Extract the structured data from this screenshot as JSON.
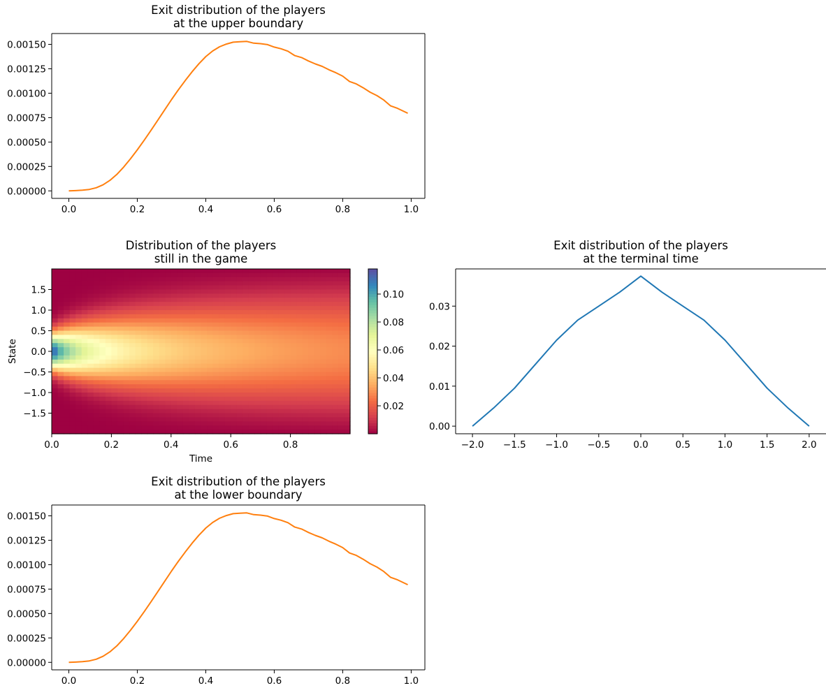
{
  "colors": {
    "orange": "#ff7f0e",
    "blue": "#1f77b4"
  },
  "chart_data": [
    {
      "id": "upper",
      "type": "line",
      "title": [
        "Exit distribution of the players",
        "at the upper boundary"
      ],
      "xlabel": "",
      "ylabel": "",
      "xlim": [
        -0.05,
        1.04
      ],
      "ylim": [
        -7.67e-05,
        0.001611
      ],
      "xticks": [
        0.0,
        0.2,
        0.4,
        0.6,
        0.8,
        1.0
      ],
      "xtick_labels": [
        "0.0",
        "0.2",
        "0.4",
        "0.6",
        "0.8",
        "1.0"
      ],
      "yticks": [
        0.0,
        0.00025,
        0.0005,
        0.00075,
        0.001,
        0.00125,
        0.0015
      ],
      "ytick_labels": [
        "0.00000",
        "0.00025",
        "0.00050",
        "0.00075",
        "0.00100",
        "0.00125",
        "0.00150"
      ],
      "series": [
        {
          "color": "#ff7f0e",
          "x": [
            0.0,
            0.02,
            0.04,
            0.06,
            0.08,
            0.1,
            0.12,
            0.14,
            0.16,
            0.18,
            0.2,
            0.22,
            0.24,
            0.26,
            0.28,
            0.3,
            0.32,
            0.34,
            0.36,
            0.38,
            0.4,
            0.42,
            0.44,
            0.46,
            0.48,
            0.5,
            0.52,
            0.54,
            0.56,
            0.58,
            0.6,
            0.62,
            0.64,
            0.66,
            0.68,
            0.7,
            0.72,
            0.74,
            0.76,
            0.78,
            0.8,
            0.82,
            0.84,
            0.86,
            0.88,
            0.9,
            0.92,
            0.94,
            0.96,
            0.99
          ],
          "y": [
            0.0,
            3e-06,
            7e-06,
            1.5e-05,
            3.2e-05,
            6.2e-05,
            0.000108,
            0.000168,
            0.000243,
            0.000328,
            0.00042,
            0.000518,
            0.00062,
            0.000725,
            0.00083,
            0.000935,
            0.001035,
            0.00113,
            0.00122,
            0.001302,
            0.001375,
            0.001432,
            0.001475,
            0.001503,
            0.001522,
            0.001527,
            0.00153,
            0.001512,
            0.001507,
            0.001498,
            0.001472,
            0.001455,
            0.00143,
            0.001385,
            0.001365,
            0.00133,
            0.0013,
            0.001275,
            0.00124,
            0.00121,
            0.001175,
            0.00112,
            0.001095,
            0.001055,
            0.00101,
            0.000975,
            0.00093,
            0.00087,
            0.000845,
            0.000795
          ]
        }
      ]
    },
    {
      "id": "heatmap",
      "type": "heatmap",
      "title": [
        "Distribution of the players",
        "still in the game"
      ],
      "xlabel": "Time",
      "ylabel": "State",
      "xlim": [
        0.0,
        1.0
      ],
      "ylim": [
        -2.0,
        2.0
      ],
      "xticks": [
        0.0,
        0.2,
        0.4,
        0.6,
        0.8
      ],
      "xtick_labels": [
        "0.0",
        "0.2",
        "0.4",
        "0.6",
        "0.8"
      ],
      "yticks": [
        -1.5,
        -1.0,
        -0.5,
        0.0,
        0.5,
        1.0,
        1.5
      ],
      "ytick_labels": [
        "−1.5",
        "−1.0",
        "−0.5",
        "0.0",
        "0.5",
        "1.0",
        "1.5"
      ],
      "grid": {
        "time_cells": 50,
        "state_cells": 40
      },
      "colorbar": {
        "min": 0.0,
        "max": 0.118,
        "ticks": [
          0.02,
          0.04,
          0.06,
          0.08,
          0.1
        ],
        "tick_labels": [
          "0.02",
          "0.04",
          "0.06",
          "0.08",
          "0.10"
        ],
        "colormap": "Spectral"
      }
    },
    {
      "id": "terminal",
      "type": "line",
      "title": [
        "Exit distribution of the players",
        "at the terminal time"
      ],
      "xlabel": "",
      "ylabel": "",
      "xlim": [
        -2.2,
        2.2
      ],
      "ylim": [
        -0.0019,
        0.0393
      ],
      "xticks": [
        -2.0,
        -1.5,
        -1.0,
        -0.5,
        0.0,
        0.5,
        1.0,
        1.5,
        2.0
      ],
      "xtick_labels": [
        "−2.0",
        "−1.5",
        "−1.0",
        "−0.5",
        "0.0",
        "0.5",
        "1.0",
        "1.5",
        "2.0"
      ],
      "yticks": [
        0.0,
        0.01,
        0.02,
        0.03
      ],
      "ytick_labels": [
        "0.00",
        "0.01",
        "0.02",
        "0.03"
      ],
      "series": [
        {
          "color": "#1f77b4",
          "x": [
            -2.0,
            -1.75,
            -1.5,
            -1.25,
            -1.0,
            -0.75,
            -0.5,
            -0.25,
            0.0,
            0.25,
            0.5,
            0.75,
            1.0,
            1.25,
            1.5,
            1.75,
            2.0
          ],
          "y": [
            0.0,
            0.0045,
            0.0095,
            0.0155,
            0.0215,
            0.0265,
            0.03,
            0.0335,
            0.0375,
            0.0335,
            0.03,
            0.0265,
            0.0215,
            0.0155,
            0.0095,
            0.0045,
            0.0
          ]
        }
      ]
    },
    {
      "id": "lower",
      "type": "line",
      "title": [
        "Exit distribution of the players",
        "at the lower boundary"
      ],
      "xlabel": "",
      "ylabel": "",
      "xlim": [
        -0.05,
        1.04
      ],
      "ylim": [
        -7.67e-05,
        0.001611
      ],
      "xticks": [
        0.0,
        0.2,
        0.4,
        0.6,
        0.8,
        1.0
      ],
      "xtick_labels": [
        "0.0",
        "0.2",
        "0.4",
        "0.6",
        "0.8",
        "1.0"
      ],
      "yticks": [
        0.0,
        0.00025,
        0.0005,
        0.00075,
        0.001,
        0.00125,
        0.0015
      ],
      "ytick_labels": [
        "0.00000",
        "0.00025",
        "0.00050",
        "0.00075",
        "0.00100",
        "0.00125",
        "0.00150"
      ],
      "series": [
        {
          "color": "#ff7f0e",
          "x": [
            0.0,
            0.02,
            0.04,
            0.06,
            0.08,
            0.1,
            0.12,
            0.14,
            0.16,
            0.18,
            0.2,
            0.22,
            0.24,
            0.26,
            0.28,
            0.3,
            0.32,
            0.34,
            0.36,
            0.38,
            0.4,
            0.42,
            0.44,
            0.46,
            0.48,
            0.5,
            0.52,
            0.54,
            0.56,
            0.58,
            0.6,
            0.62,
            0.64,
            0.66,
            0.68,
            0.7,
            0.72,
            0.74,
            0.76,
            0.78,
            0.8,
            0.82,
            0.84,
            0.86,
            0.88,
            0.9,
            0.92,
            0.94,
            0.96,
            0.99
          ],
          "y": [
            0.0,
            3e-06,
            7e-06,
            1.5e-05,
            3.2e-05,
            6.2e-05,
            0.000108,
            0.000168,
            0.000243,
            0.000328,
            0.00042,
            0.000518,
            0.00062,
            0.000725,
            0.00083,
            0.000935,
            0.001035,
            0.00113,
            0.00122,
            0.001302,
            0.001375,
            0.001432,
            0.001475,
            0.001503,
            0.001522,
            0.001527,
            0.00153,
            0.001512,
            0.001507,
            0.001498,
            0.001472,
            0.001455,
            0.00143,
            0.001385,
            0.001365,
            0.00133,
            0.0013,
            0.001275,
            0.00124,
            0.00121,
            0.001175,
            0.00112,
            0.001095,
            0.001055,
            0.00101,
            0.000975,
            0.00093,
            0.00087,
            0.000845,
            0.000795
          ]
        }
      ]
    }
  ]
}
